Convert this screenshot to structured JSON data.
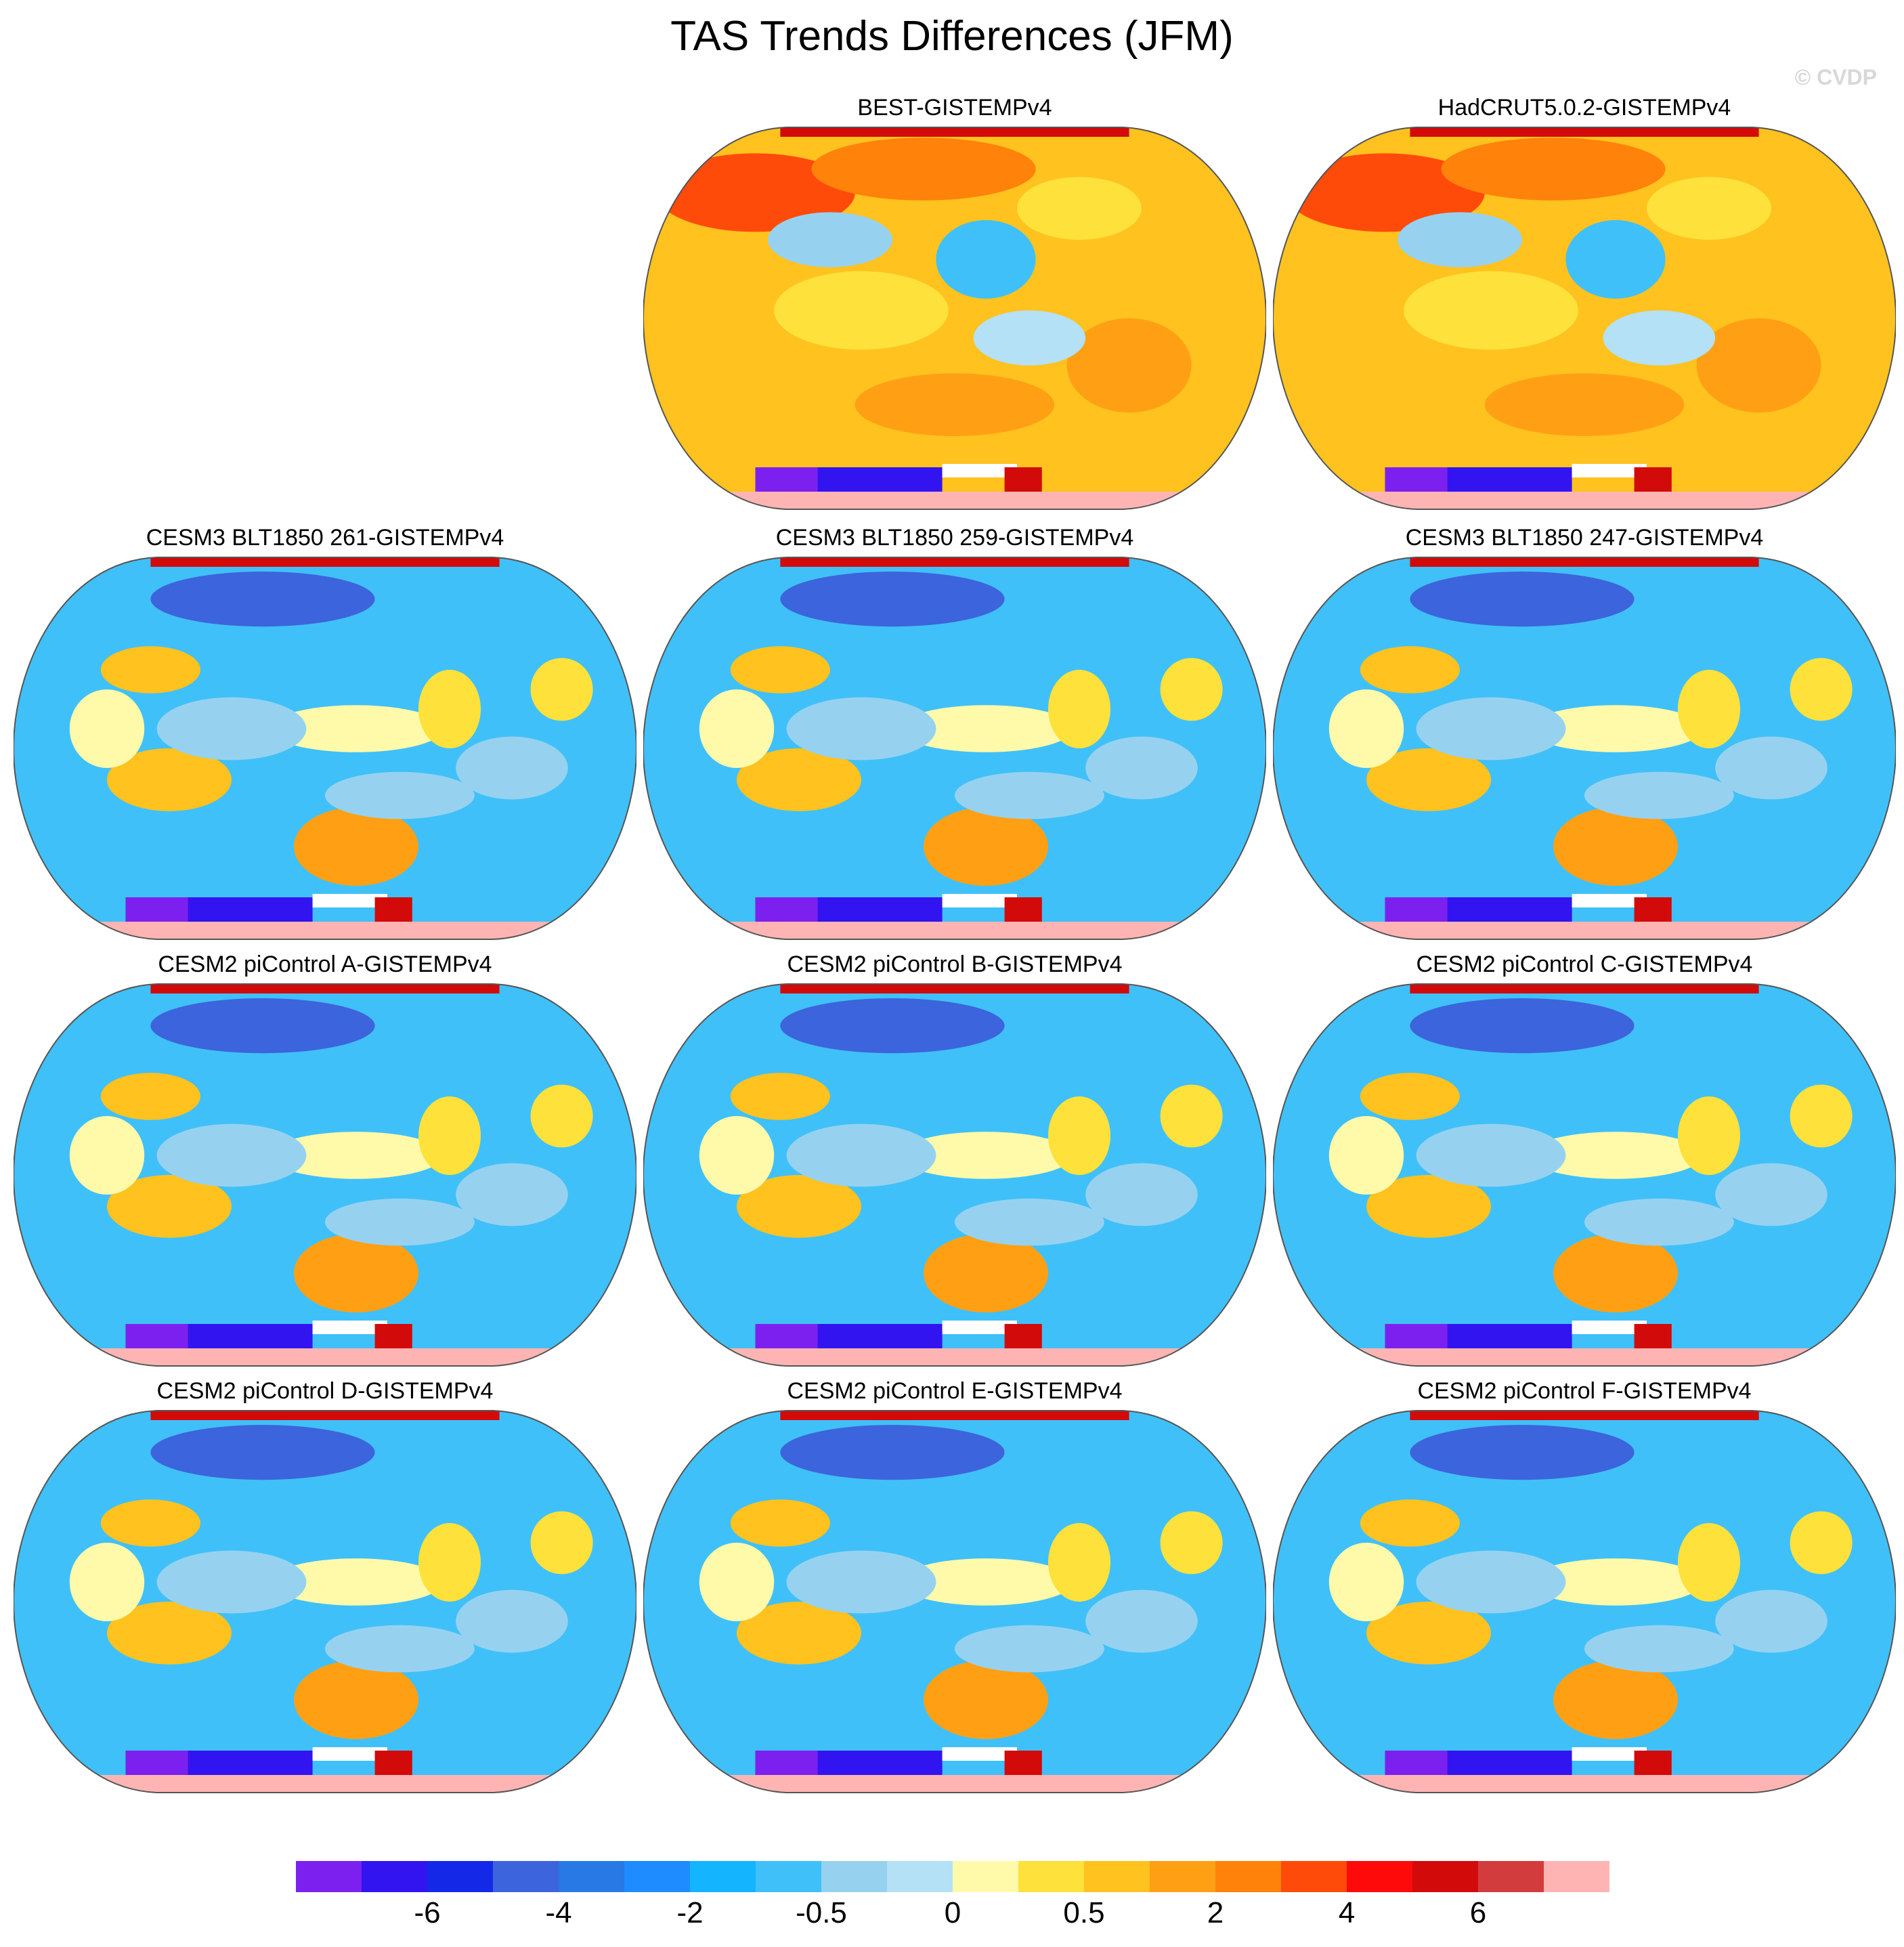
{
  "title": "TAS Trends Differences (JFM)",
  "watermark": "© CVDP",
  "chart_data": {
    "type": "map-grid",
    "title": "TAS Trends Differences (JFM)",
    "projection": "robinson",
    "panels": [
      {
        "title": "BEST-GISTEMPv4",
        "pattern": "warm"
      },
      {
        "title": "HadCRUT5.0.2-GISTEMPv4",
        "pattern": "warm"
      },
      {
        "title": "CESM3 BLT1850 261-GISTEMPv4",
        "pattern": "cool"
      },
      {
        "title": "CESM3 BLT1850 259-GISTEMPv4",
        "pattern": "cool"
      },
      {
        "title": "CESM3 BLT1850 247-GISTEMPv4",
        "pattern": "cool"
      },
      {
        "title": "CESM2 piControl A-GISTEMPv4",
        "pattern": "cool"
      },
      {
        "title": "CESM2 piControl B-GISTEMPv4",
        "pattern": "cool"
      },
      {
        "title": "CESM2 piControl C-GISTEMPv4",
        "pattern": "cool"
      },
      {
        "title": "CESM2 piControl D-GISTEMPv4",
        "pattern": "cool"
      },
      {
        "title": "CESM2 piControl E-GISTEMPv4",
        "pattern": "cool"
      },
      {
        "title": "CESM2 piControl F-GISTEMPv4",
        "pattern": "cool"
      }
    ],
    "colorbar": {
      "colors": [
        "#7c20f0",
        "#3214f0",
        "#1428e8",
        "#3c64dc",
        "#2878e6",
        "#1e8cff",
        "#14b4ff",
        "#40c0f8",
        "#96d2f0",
        "#b4e1f5",
        "#fffaaa",
        "#ffe13c",
        "#ffc21e",
        "#ffa014",
        "#ff820a",
        "#ff4b0a",
        "#ff0a0a",
        "#d20a0a",
        "#d23c3c",
        "#ffb4b4"
      ],
      "tick_labels": [
        "-6",
        "-4",
        "-2",
        "-0.5",
        "0",
        "0.5",
        "2",
        "4",
        "6"
      ]
    }
  }
}
